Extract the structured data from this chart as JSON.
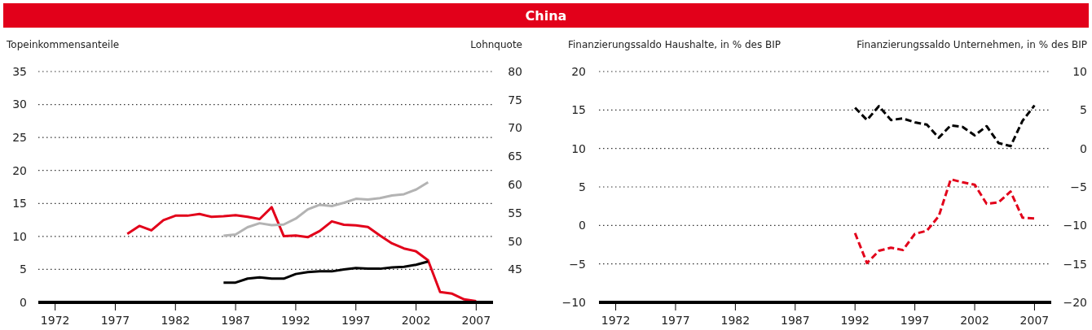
{
  "chart_data": [
    {
      "type": "line",
      "title": "China",
      "ylabel": "Topeinkommensanteile",
      "y2label": "Lohnquote",
      "x": [
        1978,
        1979,
        1980,
        1981,
        1982,
        1983,
        1984,
        1985,
        1986,
        1987,
        1988,
        1989,
        1990,
        1991,
        1992,
        1993,
        1994,
        1995,
        1996,
        1997,
        1998,
        1999,
        2000,
        2001,
        2002,
        2003,
        2004,
        2005,
        2006,
        2007
      ],
      "series": [
        {
          "color": "#e2001a",
          "axis": "y2",
          "values": [
            51.3,
            52.7,
            51.9,
            53.7,
            54.5,
            54.5,
            54.8,
            54.3,
            54.4,
            54.6,
            54.3,
            53.9,
            56.0,
            50.9,
            51.0,
            50.7,
            51.8,
            53.5,
            52.9,
            52.8,
            52.5,
            51.0,
            49.6,
            48.7,
            48.2,
            46.6,
            41.0,
            40.7,
            39.7,
            39.4
          ]
        },
        {
          "color": "#b3b3b3",
          "x": [
            1986,
            1987,
            1988,
            1989,
            1990,
            1991,
            1992,
            1993,
            1994,
            1995,
            1996,
            1997,
            1998,
            1999,
            2000,
            2001,
            2002,
            2003
          ],
          "values": [
            10.1,
            10.3,
            11.4,
            12.0,
            11.7,
            11.8,
            12.7,
            14.1,
            14.8,
            14.6,
            15.1,
            15.7,
            15.6,
            15.8,
            16.2,
            16.4,
            17.1,
            18.2
          ]
        },
        {
          "color": "#000000",
          "x": [
            1986,
            1987,
            1988,
            1989,
            1990,
            1991,
            1992,
            1993,
            1994,
            1995,
            1996,
            1997,
            1998,
            1999,
            2000,
            2001,
            2002,
            2003
          ],
          "values": [
            3.0,
            3.0,
            3.6,
            3.8,
            3.6,
            3.6,
            4.3,
            4.6,
            4.7,
            4.7,
            5.0,
            5.2,
            5.1,
            5.1,
            5.3,
            5.4,
            5.7,
            6.2
          ]
        }
      ],
      "xlim": [
        1970.6,
        2008.4
      ],
      "xticks": [
        1972,
        1977,
        1982,
        1987,
        1992,
        1997,
        2002,
        2007
      ],
      "ylim": [
        0,
        35
      ],
      "yticks": [
        0,
        5,
        10,
        15,
        20,
        25,
        30,
        35
      ],
      "y2lim": [
        39.17,
        80
      ],
      "y2ticks": [
        45,
        50,
        55,
        60,
        65,
        70,
        75,
        80
      ],
      "grid": "y",
      "line_style": "solid"
    },
    {
      "type": "line",
      "ylabel": "Finanzierungssaldo Haushalte, in % des BIP",
      "y2label": "Finanzierungssaldo Unternehmen, in % des BIP",
      "x": [
        1992,
        1993,
        1994,
        1995,
        1996,
        1997,
        1998,
        1999,
        2000,
        2001,
        2002,
        2003,
        2004,
        2005,
        2006,
        2007
      ],
      "series": [
        {
          "color": "#000000",
          "values": [
            15.3,
            13.7,
            15.5,
            13.7,
            13.9,
            13.4,
            13.1,
            11.4,
            13.0,
            12.8,
            11.7,
            12.9,
            10.7,
            10.3,
            13.6,
            15.6
          ]
        },
        {
          "color": "#e2001a",
          "axis": "y2",
          "values": [
            -11.0,
            -14.9,
            -13.3,
            -12.9,
            -13.2,
            -11.1,
            -10.7,
            -8.8,
            -4.0,
            -4.4,
            -4.7,
            -7.2,
            -7.0,
            -5.6,
            -9.0,
            -9.1
          ]
        }
      ],
      "xlim": [
        1970.6,
        2008.4
      ],
      "xticks": [
        1972,
        1977,
        1982,
        1987,
        1992,
        1997,
        2002,
        2007
      ],
      "ylim": [
        -10,
        20
      ],
      "yticks": [
        -10,
        -5,
        0,
        5,
        10,
        15,
        20
      ],
      "y2lim": [
        -20,
        10
      ],
      "y2ticks": [
        -20,
        -15,
        -10,
        -5,
        0,
        5,
        10
      ],
      "grid": "y",
      "line_style": "dashed"
    }
  ]
}
